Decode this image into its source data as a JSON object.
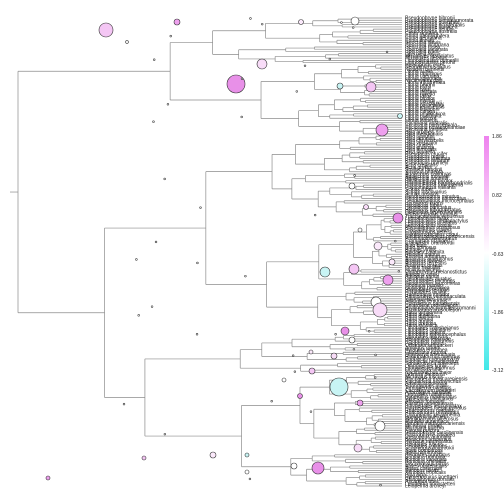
{
  "tip_labels": [
    "Pseudophryne bibronii",
    "Pseudophryne semimarmorata",
    "Pseudophryne guentheri",
    "Pseudophryne occidentalis",
    "Pseudophryne coriacea",
    "Pseudophryne dendyi",
    "Pseudophryne australis",
    "Crinia signifera",
    "Crinia parinsignifera",
    "Crinia georgiana",
    "Crinia tinnula",
    "Geocrinia laevis",
    "Geocrinia victoriana",
    "Geocrinia rosea",
    "Uperoleia laevigata",
    "Uperoleia tyleri",
    "Uperoleia fusca",
    "Mixophyes fasciolatus",
    "Mixophyes iteratus",
    "Limnodynastes dumerilii",
    "Limnodynastes peronii",
    "Heleioporus eyrei",
    "Neobatrachus pictus",
    "Notaden bennettii",
    "Litoria aurea",
    "Litoria raniformis",
    "Litoria caerulea",
    "Litoria splendida",
    "Nyctimystes dayi",
    "Litoria infrafrenata",
    "Litoria peronii",
    "Litoria rothii",
    "Litoria tyleri",
    "Litoria dentata",
    "Litoria rubella",
    "Litoria fallax",
    "Litoria bicolor",
    "Litoria ewingii",
    "Litoria verreauxii",
    "Litoria paraewingi",
    "Litoria jervisiensis",
    "Litoria littlejohni",
    "Litoria citropa",
    "Litoria phyllochroa",
    "Litoria nudidigita",
    "Litoria wilcoxii",
    "Litoria lesueuri",
    "Cyclorana australis",
    "Cyclorana platycephala",
    "Cyclorana novaehollandiae",
    "Cyclorana longipes",
    "Hyla arborea",
    "Hyla meridionalis",
    "Hyla savignyi",
    "Hyla japonica",
    "Hyla chrysoscelis",
    "Hyla versicolor",
    "Hyla cinerea",
    "Hyla gratiosa",
    "Hyla femoralis",
    "Hyla squirella",
    "Pseudacris crucifer",
    "Pseudacris regilla",
    "Pseudacris triseriata",
    "Pseudacris feriarum",
    "Pseudacris brimleyi",
    "Acris crepitans",
    "Acris gryllus",
    "Smilisca baudinii",
    "Smilisca phaeota",
    "Agalychnis callidryas",
    "Agalychnis moreletii",
    "Agalychnis spurrelli",
    "Phyllomedusa bicolor",
    "Phyllomedusa hypochondrialis",
    "Phyllomedusa tomopterna",
    "Phyllomedusa vaillantii",
    "Scinax ruber",
    "Scinax fuscovarius",
    "Scinax nasicus",
    "Dendropsophus minutus",
    "Dendropsophus ebraccatus",
    "Dendropsophus microcephalus",
    "Hypsiboas boans",
    "Hypsiboas faber",
    "Hypsiboas punctatus",
    "Hypsiboas albopunctatus",
    "Osteopilus septentrionalis",
    "Osteocephalus taurinus",
    "Trachycephalus venulosus",
    "Leptodactylus fallax",
    "Leptodactylus pentadactylus",
    "Leptodactylus ocellatus",
    "Leptodactylus fuscus",
    "Physalaemus pustulosus",
    "Physalaemus cuvieri",
    "Engystomops petersi",
    "Eleutherodactylus coqui",
    "Eleutherodactylus portoricensis",
    "Pristimantis fenestratus",
    "Craugastor fitzingeri",
    "Craugastor bransfordii",
    "Bufo bufo",
    "Bufo spinosus",
    "Bufotes viridis",
    "Epidalea calamita",
    "Rhinella marina",
    "Rhinella arenarum",
    "Anaxyrus americanus",
    "Anaxyrus fowleri",
    "Anaxyrus terrestris",
    "Anaxyrus boreas",
    "Incilius nebulifer",
    "Incilius valliceps",
    "Duttaphrynus melanostictus",
    "Atelopus zeteki",
    "Atelopus varius",
    "Dendrobates auratus",
    "Dendrobates tinctorius",
    "Dendrobates leucomelas",
    "Oophaga pumilio",
    "Oophaga histrionica",
    "Phyllobates terribilis",
    "Phyllobates bicolor",
    "Ranitomeya imitator",
    "Ranitomeya ventrimaculata",
    "Epipedobates tricolor",
    "Allobates femoralis",
    "Colostethus panamensis",
    "Centrolene prosoblepon",
    "Hyalinobatrachium fleischmanni",
    "Espadarana prosoblepon",
    "Rana temporaria",
    "Rana arvalis",
    "Rana dalmatina",
    "Rana iberica",
    "Rana aurora",
    "Rana pretiosa",
    "Rana sylvatica",
    "Lithobates catesbeianus",
    "Lithobates clamitans",
    "Lithobates pipiens",
    "Lithobates sphenocephalus",
    "Lithobates palustris",
    "Pelophylax lessonae",
    "Pelophylax ridibundus",
    "Pelophylax perezi",
    "Odorrana schmackeri",
    "Amolops ricketti",
    "Hylarana erythraea",
    "Glandirana rugosa",
    "Fejervarya limnocharis",
    "Hoplobatrachus tigerinus",
    "Euphlyctis cyanophlyctis",
    "Euphlyctis hexadactylus",
    "Sphaerotheca breviceps",
    "Limnonectes kuhlii",
    "Limnonectes leporinus",
    "Occidozyga lima",
    "Nyctibatrachus major",
    "Indirana beddomii",
    "Micrixalus fuscus",
    "Ptychadena mascareniensis",
    "Ptychadena oxyrhynchus",
    "Amietia angolensis",
    "Strongylopus grayii",
    "Tomopterna cryptotis",
    "Cacosternum boettgeri",
    "Arthroleptis variabilis",
    "Leptopelis natalensis",
    "Hyperolius marmoratus",
    "Hyperolius viridiflavus",
    "Afrixalus fornasini",
    "Kassina senegalensis",
    "Polypedates leucomystax",
    "Polypedates megacephalus",
    "Rhacophorus pardalis",
    "Rhacophorus reinwardtii",
    "Chiromantis xerampelina",
    "Buergeria buergeri",
    "Mantidactylus ulcerosus",
    "Mantella aurantiaca",
    "Boophis madagascariensis",
    "Microhyla ornata",
    "Microhyla pulchra",
    "Kaloula pulchra",
    "Gastrophryne carolinensis",
    "Gastrophryne olivacea",
    "Dyscophus antongilii",
    "Breviceps adspersus",
    "Hemisus marmoratus",
    "Pelobates fuscus",
    "Pelobates cultripes",
    "Scaphiopus holbrookii",
    "Spea bombifrons",
    "Spea hammondii",
    "Pelodytes punctatus",
    "Bombina bombina",
    "Bombina variegata",
    "Bombina orientalis",
    "Discoglossus pictus",
    "Alytes obstetricans",
    "Alytes cisternasii",
    "Xenopus laevis",
    "Xenopus tropicalis",
    "Pipa pipa",
    "Hymenochirus boettgeri",
    "Rhinophrynus dorsalis",
    "Ascaphus truei",
    "Leiopelma hochstetteri",
    "Leiopelma archeyi"
  ],
  "legend": {
    "ticks": [
      "1.86",
      "0.82",
      "-0.63",
      "-1.86",
      "-3.12"
    ],
    "colors": {
      "high": "#ee82ee",
      "mid": "#ffffff",
      "low": "#40e8e8"
    }
  }
}
